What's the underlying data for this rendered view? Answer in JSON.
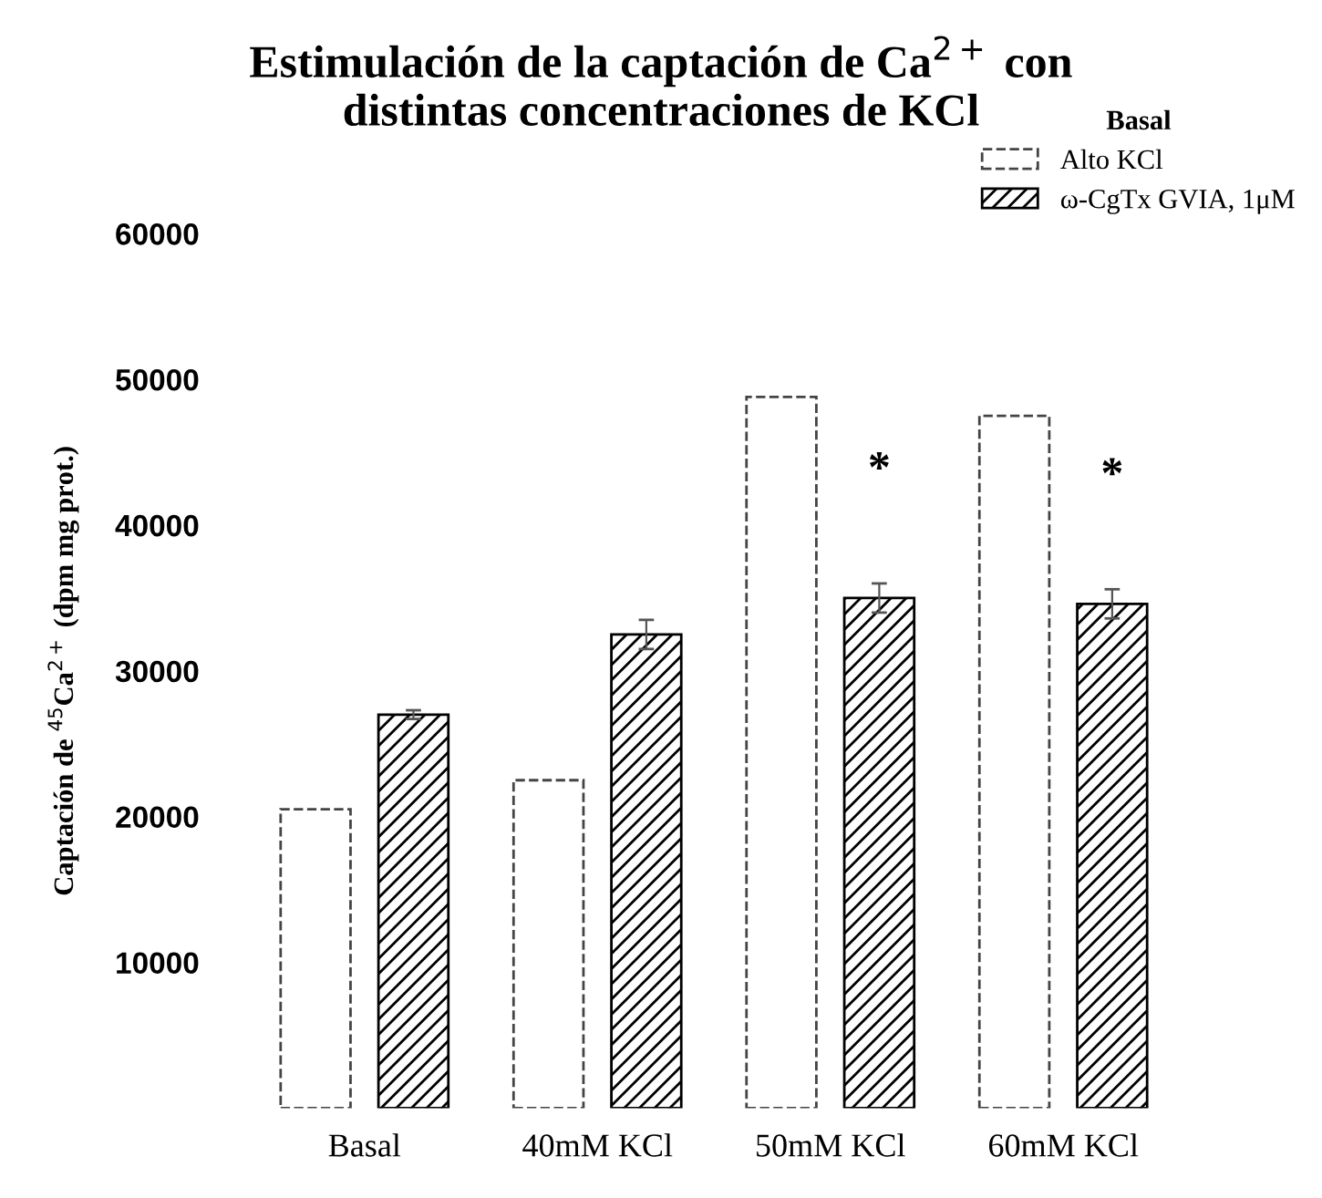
{
  "chart_data": {
    "type": "bar",
    "title": "Estimulación de la captación de Ca$^{2+}$ con\ndistintas concentraciones de KCl",
    "ylabel": "Captación de $^{45}$Ca$^{2+}$ (dpm mg prot.)",
    "legend_title": "Basal",
    "categories": [
      "Basal",
      "40mM KCl",
      "50mM KCl",
      "60mM KCl"
    ],
    "series": [
      {
        "name": "Alto KCl",
        "color": "#ffffff",
        "line_style": "dashed",
        "values": [
          20500,
          22500,
          48800,
          47500
        ]
      },
      {
        "name": "ω-CgTx GVIA, 1μM",
        "color": "#000000",
        "values": [
          27000,
          32500,
          35000,
          34600
        ],
        "errors": [
          300,
          1000,
          1000,
          1000
        ]
      }
    ],
    "annotations": [
      "*",
      "*"
    ],
    "ylim": [
      0,
      60000
    ],
    "yticks": [
      10000,
      20000,
      30000,
      40000,
      50000,
      60000
    ],
    "grid": false,
    "legend": "top right"
  }
}
